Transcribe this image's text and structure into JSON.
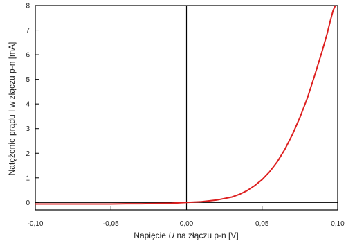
{
  "chart_data": {
    "type": "line",
    "xlabel_parts": [
      "Napięcie ",
      "U",
      " na złączu p-n  [V]"
    ],
    "ylabel": "Natężenie prądu  I  w złączu p-n  [mA]",
    "xlim": [
      -0.1,
      0.1
    ],
    "ylim": [
      -0.3,
      8
    ],
    "xticks": [
      -0.1,
      -0.05,
      0.0,
      0.05,
      0.1
    ],
    "xtick_labels": [
      "-0,10",
      "-0,05",
      "0,00",
      "0,05",
      "0,10"
    ],
    "yticks": [
      0,
      1,
      2,
      3,
      4,
      5,
      6,
      7,
      8
    ],
    "ytick_labels": [
      "0",
      "1",
      "2",
      "3",
      "4",
      "5",
      "6",
      "7",
      "8"
    ],
    "grid": false,
    "reference_lines": {
      "x": 0,
      "y": 0
    },
    "series": [
      {
        "color": "#dd1f1f",
        "x": [
          -0.1,
          -0.09,
          -0.08,
          -0.07,
          -0.06,
          -0.05,
          -0.04,
          -0.03,
          -0.02,
          -0.01,
          0.0,
          0.01,
          0.02,
          0.03,
          0.035,
          0.04,
          0.045,
          0.05,
          0.055,
          0.06,
          0.065,
          0.07,
          0.075,
          0.08,
          0.085,
          0.09,
          0.093,
          0.095,
          0.097,
          0.0985
        ],
        "y": [
          -0.06,
          -0.06,
          -0.06,
          -0.06,
          -0.06,
          -0.06,
          -0.05,
          -0.05,
          -0.04,
          -0.03,
          0.0,
          0.03,
          0.1,
          0.22,
          0.33,
          0.48,
          0.68,
          0.93,
          1.25,
          1.65,
          2.15,
          2.75,
          3.45,
          4.25,
          5.2,
          6.2,
          6.85,
          7.35,
          7.8,
          8.0
        ]
      }
    ]
  }
}
